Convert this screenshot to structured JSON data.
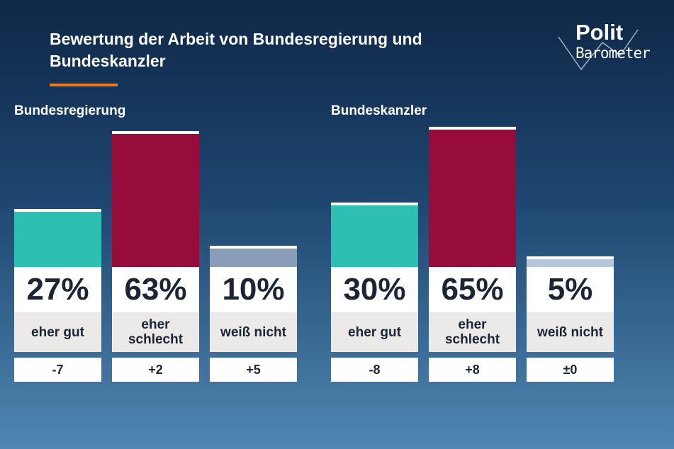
{
  "title": "Bewertung der Arbeit von Bundesregierung und Bundeskanzler",
  "logo": {
    "line1": "Polit",
    "line2": "Barometer"
  },
  "chart_data": [
    {
      "type": "bar",
      "title": "Bundesregierung",
      "categories": [
        "eher gut",
        "eher schlecht",
        "weiß nicht"
      ],
      "values": [
        27,
        63,
        10
      ],
      "value_labels": [
        "27%",
        "63%",
        "10%"
      ],
      "colors": [
        "#2ebfb3",
        "#980c3c",
        "#8a9db8"
      ],
      "changes": [
        "-7",
        "+2",
        "+5"
      ]
    },
    {
      "type": "bar",
      "title": "Bundeskanzler",
      "categories": [
        "eher gut",
        "eher schlecht",
        "weiß nicht"
      ],
      "values": [
        30,
        65,
        5
      ],
      "value_labels": [
        "30%",
        "65%",
        "5%"
      ],
      "colors": [
        "#2ebfb3",
        "#980c3c",
        "#b7c6d9"
      ],
      "changes": [
        "-8",
        "+8",
        "±0"
      ]
    }
  ]
}
